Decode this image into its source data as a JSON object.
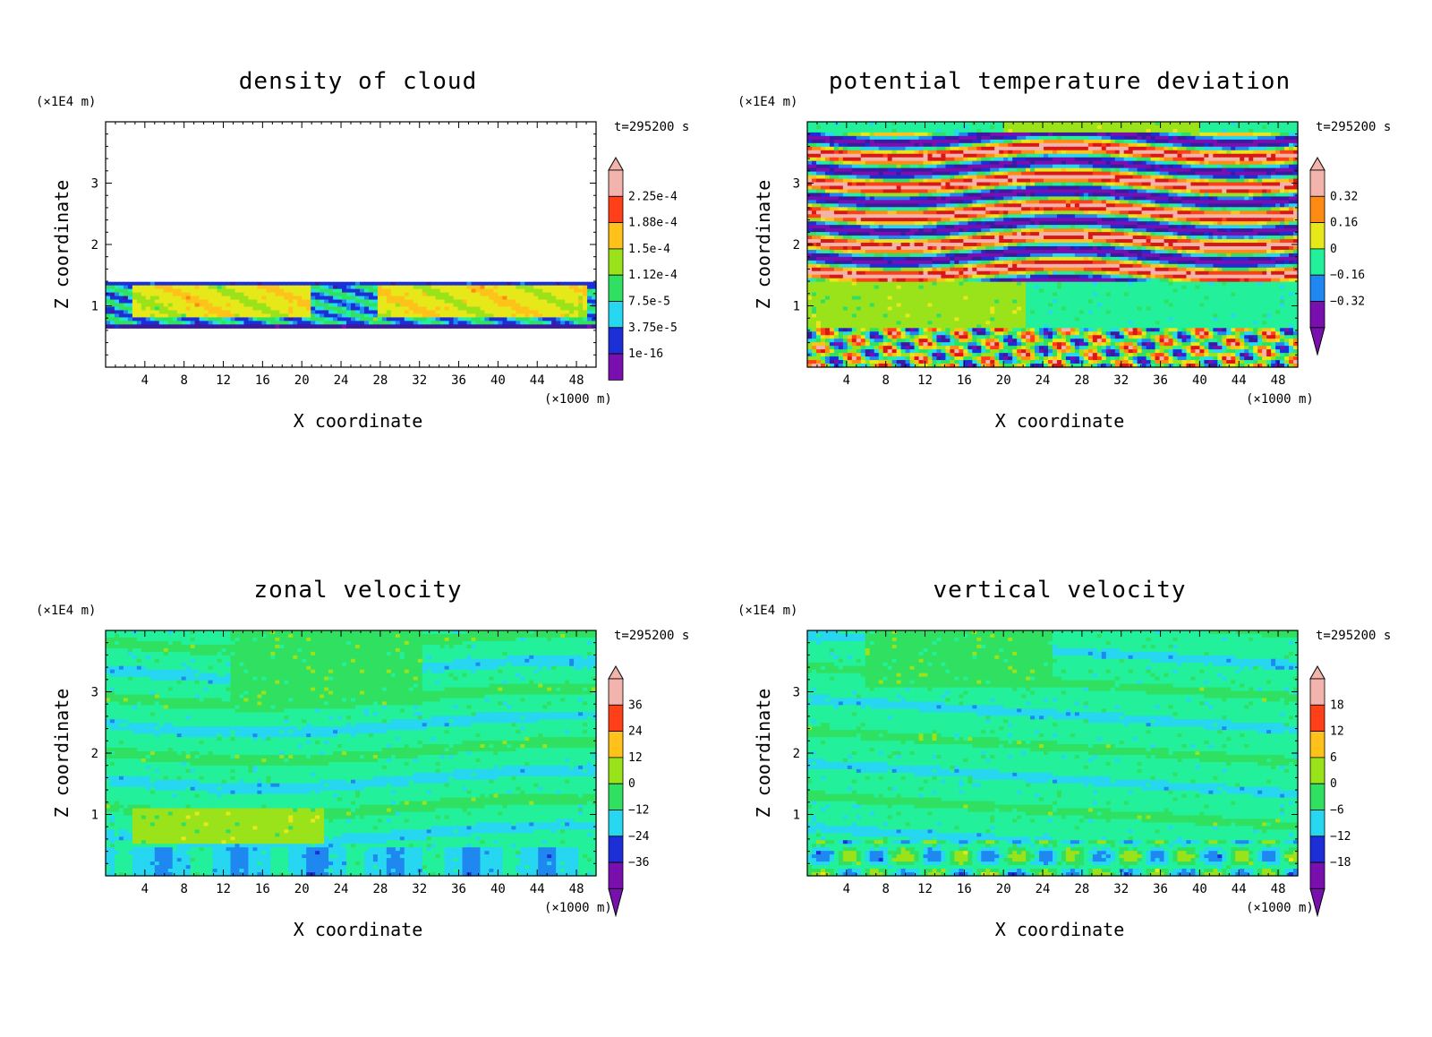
{
  "chart_data": [
    {
      "type": "heatmap",
      "title": "density of cloud",
      "xlabel": "X coordinate",
      "ylabel": "Z coordinate",
      "x_unit": "(×1000 m)",
      "y_unit": "(×1E4 m)",
      "time": "t=295200 s",
      "xlim": [
        0,
        50
      ],
      "ylim": [
        0,
        4
      ],
      "x_ticks": [
        "4",
        "8",
        "12",
        "16",
        "20",
        "24",
        "28",
        "32",
        "36",
        "40",
        "44",
        "48"
      ],
      "y_ticks": [
        "1",
        "2",
        "3"
      ],
      "colorbar_labels": [
        "2.25e-4",
        "1.88e-4",
        "1.5e-4",
        "1.12e-4",
        "7.5e-5",
        "3.75e-5",
        "1e-16"
      ],
      "colorbar_bottom_arrow": false,
      "field": "cloud_layer"
    },
    {
      "type": "heatmap",
      "title": "potential temperature deviation",
      "xlabel": "X coordinate",
      "ylabel": "Z coordinate",
      "x_unit": "(×1000 m)",
      "y_unit": "(×1E4 m)",
      "time": "t=295200 s",
      "xlim": [
        0,
        50
      ],
      "ylim": [
        0,
        4
      ],
      "x_ticks": [
        "4",
        "8",
        "12",
        "16",
        "20",
        "24",
        "28",
        "32",
        "36",
        "40",
        "44",
        "48"
      ],
      "y_ticks": [
        "1",
        "2",
        "3"
      ],
      "colorbar_labels": [
        "0.32",
        "0.16",
        "0",
        "−0.16",
        "−0.32"
      ],
      "colorbar_bottom_arrow": true,
      "field": "theta_bands"
    },
    {
      "type": "heatmap",
      "title": "zonal velocity",
      "xlabel": "X coordinate",
      "ylabel": "Z coordinate",
      "x_unit": "(×1000 m)",
      "y_unit": "(×1E4 m)",
      "time": "t=295200 s",
      "xlim": [
        0,
        50
      ],
      "ylim": [
        0,
        4
      ],
      "x_ticks": [
        "4",
        "8",
        "12",
        "16",
        "20",
        "24",
        "28",
        "32",
        "36",
        "40",
        "44",
        "48"
      ],
      "y_ticks": [
        "1",
        "2",
        "3"
      ],
      "colorbar_labels": [
        "36",
        "24",
        "12",
        "0",
        "−12",
        "−24",
        "−36"
      ],
      "colorbar_bottom_arrow": true,
      "field": "zonal_smooth"
    },
    {
      "type": "heatmap",
      "title": "vertical velocity",
      "xlabel": "X coordinate",
      "ylabel": "Z coordinate",
      "x_unit": "(×1000 m)",
      "y_unit": "(×1E4 m)",
      "time": "t=295200 s",
      "xlim": [
        0,
        50
      ],
      "ylim": [
        0,
        4
      ],
      "x_ticks": [
        "4",
        "8",
        "12",
        "16",
        "20",
        "24",
        "28",
        "32",
        "36",
        "40",
        "44",
        "48"
      ],
      "y_ticks": [
        "1",
        "2",
        "3"
      ],
      "colorbar_labels": [
        "18",
        "12",
        "6",
        "0",
        "−6",
        "−12",
        "−18"
      ],
      "colorbar_bottom_arrow": true,
      "field": "vertical_smooth"
    }
  ],
  "colors": {
    "palette": [
      "#7a0fb0",
      "#3a1a9e",
      "#1c2fd6",
      "#1e88f0",
      "#27d6f0",
      "#22f09a",
      "#30e060",
      "#9ae21a",
      "#e6e81a",
      "#ffc21a",
      "#ff8a14",
      "#ff3f1a",
      "#d81818",
      "#f3b3ad"
    ]
  }
}
